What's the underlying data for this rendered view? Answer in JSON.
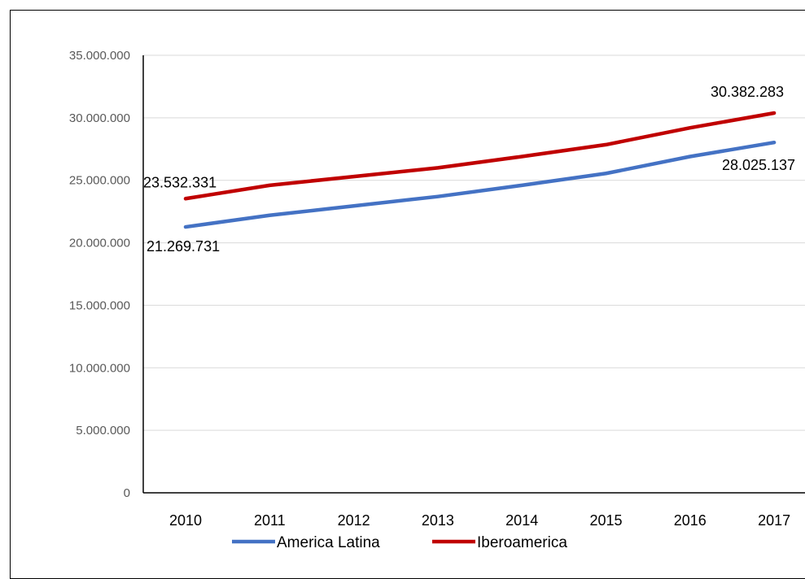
{
  "chart_data": {
    "type": "line",
    "categories": [
      "2010",
      "2011",
      "2012",
      "2013",
      "2014",
      "2015",
      "2016",
      "2017"
    ],
    "series": [
      {
        "name": "America Latina",
        "color": "#4472C4",
        "values": [
          21269731,
          22200000,
          22950000,
          23700000,
          24600000,
          25550000,
          26900000,
          28025137
        ]
      },
      {
        "name": "Iberoamerica",
        "color": "#C00000",
        "values": [
          23532331,
          24600000,
          25300000,
          26000000,
          26900000,
          27850000,
          29200000,
          30382283
        ]
      }
    ],
    "ylim": [
      0,
      35000000
    ],
    "yticks": [
      "0",
      "5.000.000",
      "10.000.000",
      "15.000.000",
      "20.000.000",
      "25.000.000",
      "30.000.000",
      "35.000.000"
    ],
    "data_labels": [
      {
        "series": 0,
        "index": 0,
        "text": "21.269.731"
      },
      {
        "series": 0,
        "index": 7,
        "text": "28.025.137"
      },
      {
        "series": 1,
        "index": 0,
        "text": "23.532.331"
      },
      {
        "series": 1,
        "index": 7,
        "text": "30.382.283"
      }
    ],
    "grid": true,
    "legend": "bottom",
    "title": "",
    "xlabel": "",
    "ylabel": ""
  }
}
